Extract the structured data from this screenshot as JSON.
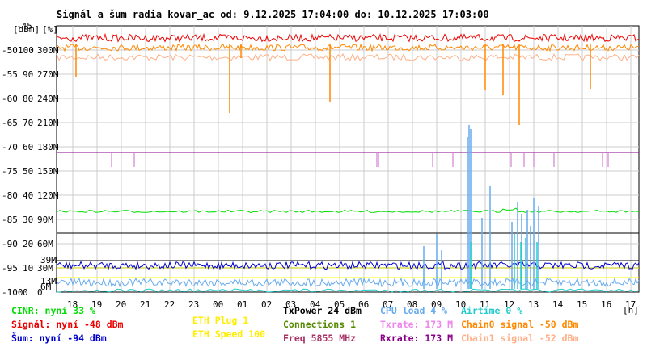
{
  "chart_data": {
    "type": "line",
    "title": "Signál a šum radia kovar_ac od: 9.12.2025 17:04:00 do: 10.12.2025 17:03:00",
    "y_left_units": "[dBm]",
    "y_pct_units": "[%]",
    "x_unit": "[h]",
    "y_dbm_ticks": [
      "-45",
      "-50",
      "-55",
      "-60",
      "-65",
      "-70",
      "-75",
      "-80",
      "-85",
      "-90",
      "-95",
      "-100"
    ],
    "y_pct_ticks": [
      "",
      "100",
      "90",
      "80",
      "70",
      "60",
      "50",
      "40",
      "30",
      "20",
      "10",
      "0"
    ],
    "y_rate_ticks": [
      "",
      "300M",
      "270M",
      "240M",
      "210M",
      "180M",
      "150M",
      "120M",
      "90M",
      "60M",
      "30M",
      "0"
    ],
    "ylim_dbm": [
      -100,
      -45
    ],
    "x_hour_labels": [
      "18",
      "19",
      "20",
      "21",
      "22",
      "23",
      "00",
      "01",
      "02",
      "03",
      "04",
      "05",
      "06",
      "07",
      "08",
      "09",
      "10",
      "11",
      "12",
      "13",
      "14",
      "15",
      "16",
      "17"
    ],
    "inner_marks": {
      "m39": "39M",
      "m13": "13M",
      "m6": "6M"
    },
    "series": [
      {
        "name": "Signál",
        "color": "#ee0000",
        "base_dbm": -47.5
      },
      {
        "name": "Chain0 signal",
        "color": "#ff8800",
        "base_dbm": -49.5
      },
      {
        "name": "Chain1 signal",
        "color": "#ffb088",
        "base_dbm": -51.5
      },
      {
        "name": "Šum",
        "color": "#0000cc",
        "base_dbm": -94.5
      },
      {
        "name": "CINR",
        "color": "#00dd00",
        "base_pct": 33
      },
      {
        "name": "Txrate",
        "color": "#cc66cc",
        "base_rate_M": 173
      },
      {
        "name": "Rxrate",
        "color": "#880088",
        "base_rate_M": 173
      },
      {
        "name": "CPU load",
        "color": "#66aaee",
        "base_pct": 4
      },
      {
        "name": "Airtime",
        "color": "#22cccc",
        "base_pct": 0
      }
    ],
    "reference_lines": [
      {
        "color": "#ffff00",
        "pct": 6
      },
      {
        "color": "#000000",
        "pct": 13
      },
      {
        "color": "#cccc00",
        "pct": 10
      }
    ],
    "legend_position": "bottom"
  },
  "legend": {
    "c1": [
      {
        "text": "CINR: nyní 33 %",
        "color": "#00dd00"
      },
      {
        "text": "Signál: nyní -48 dBm",
        "color": "#ee0000"
      },
      {
        "text": "Šum: nyní -94 dBm",
        "color": "#0000cc"
      }
    ],
    "c2": [
      {
        "text": "ETH Plug 1",
        "color": "#ffee00"
      },
      {
        "text": "ETH Speed 100",
        "color": "#ffee00"
      }
    ],
    "c3": [
      {
        "text": "TxPower 24 dBm",
        "color": "#000000"
      },
      {
        "text": "Connections 1",
        "color": "#558800"
      },
      {
        "text": "Freq 5855 MHz",
        "color": "#aa3366"
      }
    ],
    "c4": [
      {
        "text": "CPU load 4 %",
        "color": "#66aaee"
      },
      {
        "text": "Txrate: 173 M",
        "color": "#ee88ee"
      },
      {
        "text": "Rxrate: 173 M",
        "color": "#880088"
      }
    ],
    "c5": [
      {
        "text": "Airtime 0 %",
        "color": "#22cccc"
      },
      {
        "text": "Chain0 signal -50 dBm",
        "color": "#ff8800"
      },
      {
        "text": "Chain1 signal -52 dBm",
        "color": "#ffb088"
      }
    ]
  }
}
